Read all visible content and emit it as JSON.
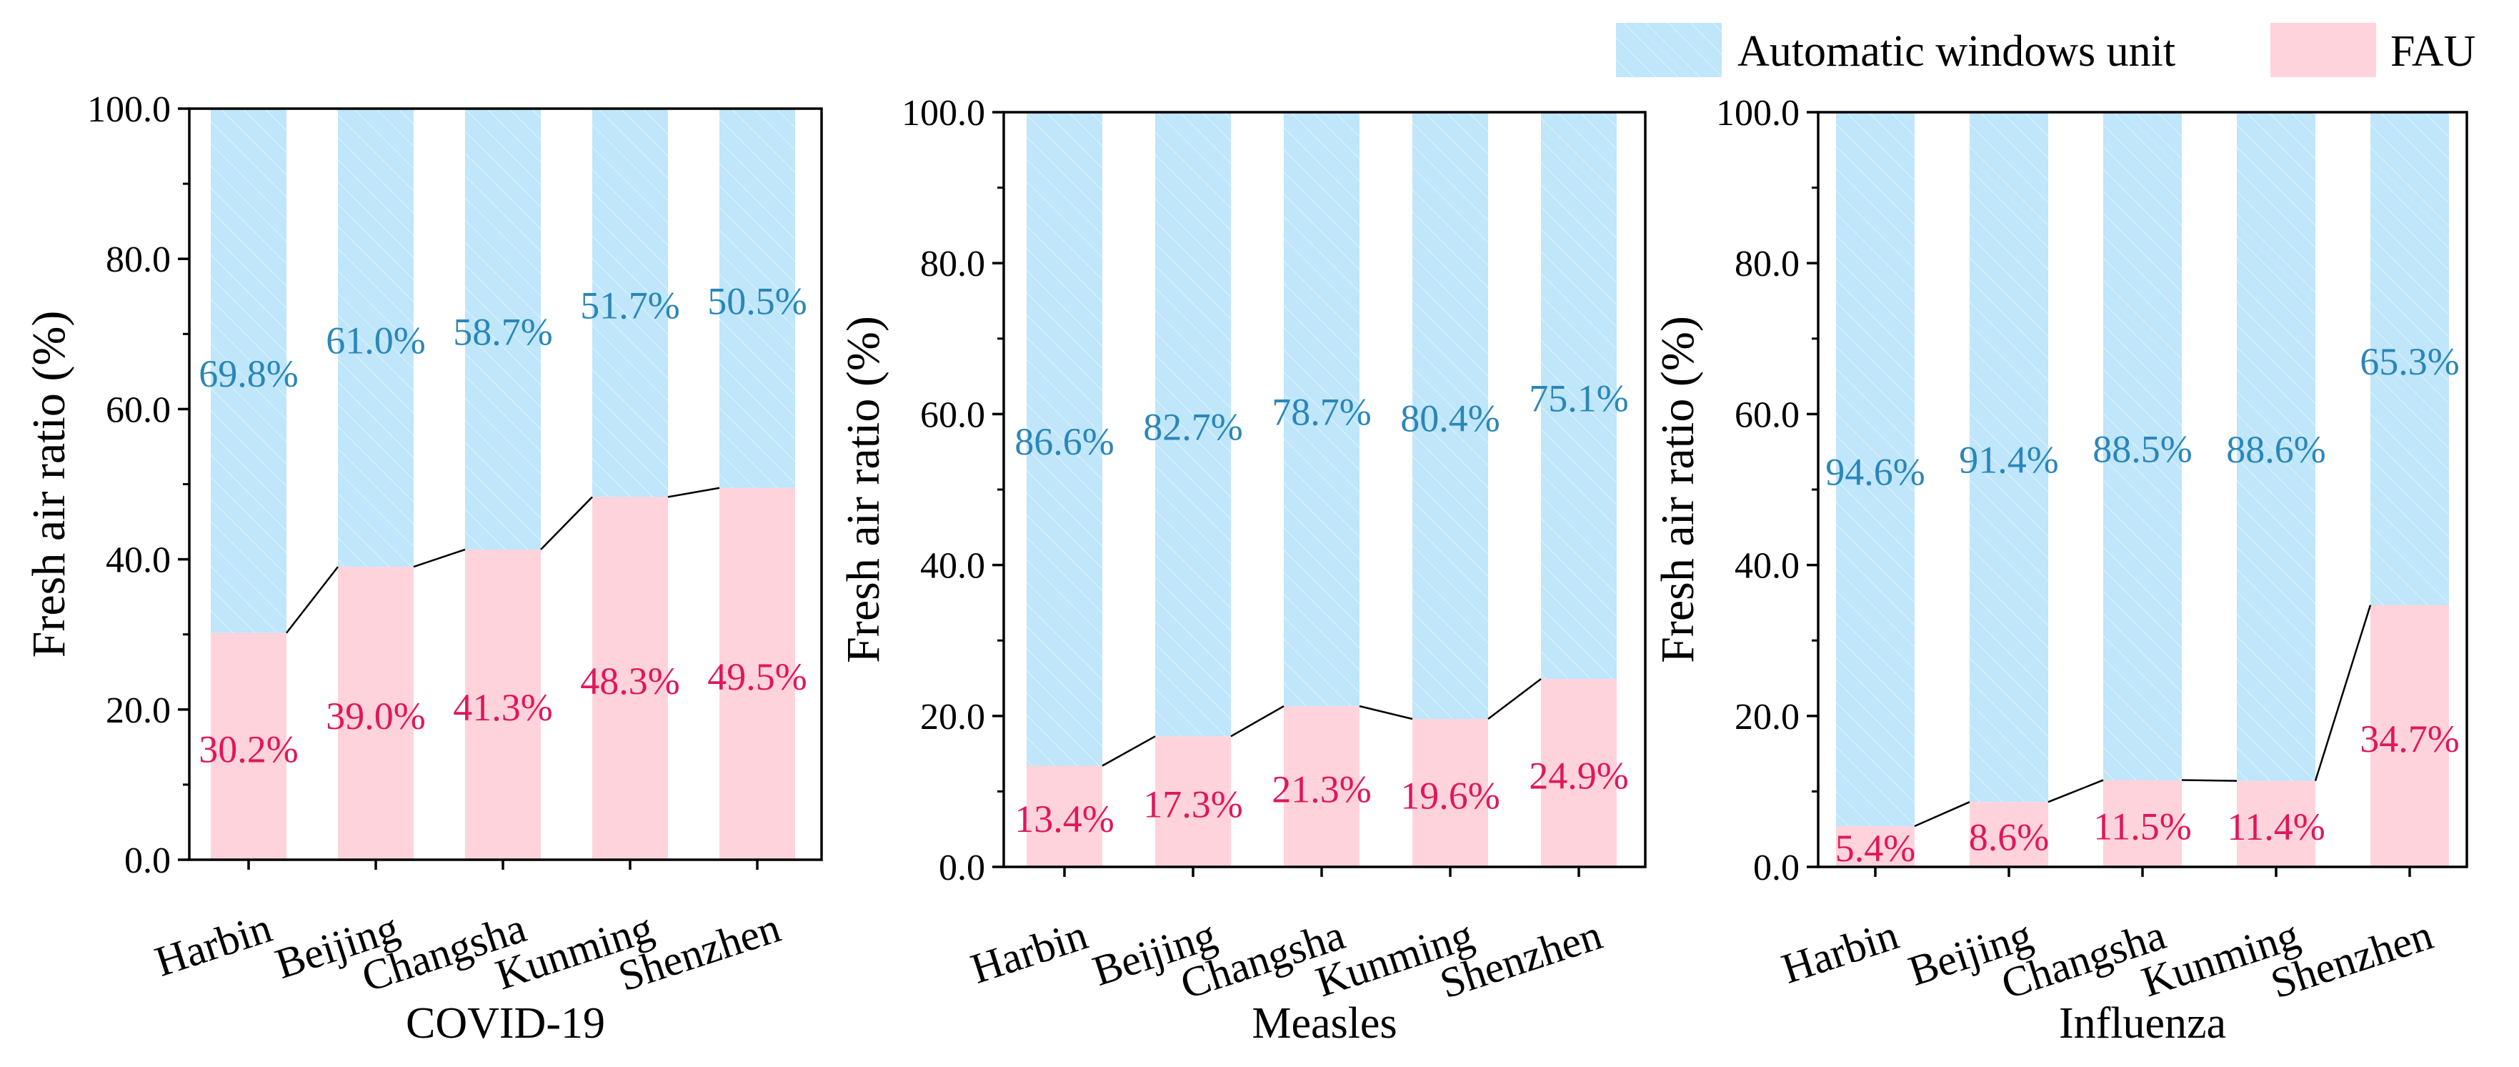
{
  "legend": {
    "placement": "top-right",
    "items": [
      {
        "label": "Automatic windows unit",
        "color": "#bfe6fa"
      },
      {
        "label": "FAU",
        "color": "#ffd3dc"
      }
    ]
  },
  "colors": {
    "awu_fill": "#bfe6fa",
    "fau_fill": "#ffd3dc",
    "awu_label": "#2b86b8",
    "fau_label": "#e0175a",
    "axis": "#000000"
  },
  "chart_data": [
    {
      "type": "bar",
      "stacked": true,
      "title": "COVID-19",
      "xlabel": "COVID-19",
      "ylabel": "Fresh air ratio (%)",
      "ylim": [
        0,
        100
      ],
      "yticks": [
        "0.0",
        "20.0",
        "40.0",
        "60.0",
        "80.0",
        "100.0"
      ],
      "categories": [
        "Harbin",
        "Beijing",
        "Changsha",
        "Kunming",
        "Shenzhen"
      ],
      "series": [
        {
          "name": "FAU",
          "values": [
            30.2,
            39.0,
            41.3,
            48.3,
            49.5
          ],
          "labels": [
            "30.2%",
            "39.0%",
            "41.3%",
            "48.3%",
            "49.5%"
          ]
        },
        {
          "name": "Automatic windows unit",
          "values": [
            69.8,
            61.0,
            58.7,
            51.7,
            50.5
          ],
          "labels": [
            "69.8%",
            "61.0%",
            "58.7%",
            "51.7%",
            "50.5%"
          ]
        }
      ]
    },
    {
      "type": "bar",
      "stacked": true,
      "title": "Measles",
      "xlabel": "Measles",
      "ylabel": "Fresh air ratio (%)",
      "ylim": [
        0,
        100
      ],
      "yticks": [
        "0.0",
        "20.0",
        "40.0",
        "60.0",
        "80.0",
        "100.0"
      ],
      "categories": [
        "Harbin",
        "Beijing",
        "Changsha",
        "Kunming",
        "Shenzhen"
      ],
      "series": [
        {
          "name": "FAU",
          "values": [
            13.4,
            17.3,
            21.3,
            19.6,
            24.9
          ],
          "labels": [
            "13.4%",
            "17.3%",
            "21.3%",
            "19.6%",
            "24.9%"
          ]
        },
        {
          "name": "Automatic windows unit",
          "values": [
            86.6,
            82.7,
            78.7,
            80.4,
            75.1
          ],
          "labels": [
            "86.6%",
            "82.7%",
            "78.7%",
            "80.4%",
            "75.1%"
          ]
        }
      ]
    },
    {
      "type": "bar",
      "stacked": true,
      "title": "Influenza",
      "xlabel": "Influenza",
      "ylabel": "Fresh air ratio (%)",
      "ylim": [
        0,
        100
      ],
      "yticks": [
        "0.0",
        "20.0",
        "40.0",
        "60.0",
        "80.0",
        "100.0"
      ],
      "categories": [
        "Harbin",
        "Beijing",
        "Changsha",
        "Kunming",
        "Shenzhen"
      ],
      "series": [
        {
          "name": "FAU",
          "values": [
            5.4,
            8.6,
            11.5,
            11.4,
            34.7
          ],
          "labels": [
            "5.4%",
            "8.6%",
            "11.5%",
            "11.4%",
            "34.7%"
          ]
        },
        {
          "name": "Automatic windows unit",
          "values": [
            94.6,
            91.4,
            88.5,
            88.6,
            65.3
          ],
          "labels": [
            "94.6%",
            "91.4%",
            "88.5%",
            "88.6%",
            "65.3%"
          ]
        }
      ]
    }
  ]
}
